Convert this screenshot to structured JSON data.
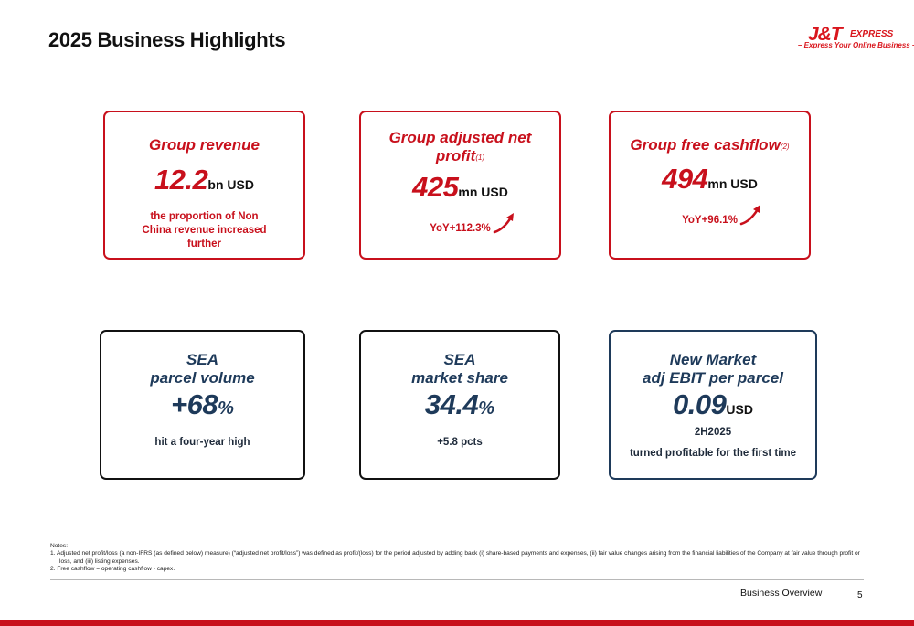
{
  "page": {
    "title": "2025 Business Highlights"
  },
  "logo": {
    "mark": "J&T",
    "word": "EXPRESS",
    "tagline": "– Express Your Online Business –"
  },
  "cards": {
    "revenue": {
      "title": "Group revenue",
      "value": "12.2",
      "unit": "bn USD",
      "note": "the proportion of Non China revenue increased further"
    },
    "profit": {
      "title_line1": "Group adjusted net",
      "title_line2": "profit",
      "footnote": "(1)",
      "value": "425",
      "unit": "mn USD",
      "yoy": "YoY+112.3%"
    },
    "cashflow": {
      "title": "Group free cashflow",
      "footnote": "(2)",
      "value": "494",
      "unit": "mn USD",
      "yoy": "YoY+96.1%"
    },
    "parcel": {
      "title_line1": "SEA",
      "title_line2": "parcel volume",
      "value": "+68",
      "unit": "%",
      "note": "hit a four-year high"
    },
    "share": {
      "title_line1": "SEA",
      "title_line2": "market share",
      "value": "34.4",
      "unit": "%",
      "note": "+5.8 pcts"
    },
    "ebit": {
      "title_line1": "New Market",
      "title_line2": "adj EBIT per parcel",
      "value": "0.09",
      "unit": "USD",
      "period": "2H2025",
      "note": "turned profitable for the first time"
    }
  },
  "notes": {
    "heading": "Notes:",
    "items": [
      "1.  Adjusted net profit/loss (a non-IFRS (as defined below) measure) (“adjusted net profit/loss”) was defined as profit/(loss) for the period adjusted by adding back (i) share-based payments and expenses, (ii) fair value changes arising from the financial liabilities of the Company at fair value through profit or loss, and (iii) listing expenses.",
      "2.  Free cashflow = operating cashflow - capex."
    ]
  },
  "footer": {
    "section": "Business Overview",
    "page_number": "5"
  },
  "colors": {
    "brand_red": "#c8101c",
    "navy": "#1e3a5a"
  },
  "icons": {
    "trend": "trend-up-arrow-icon"
  }
}
